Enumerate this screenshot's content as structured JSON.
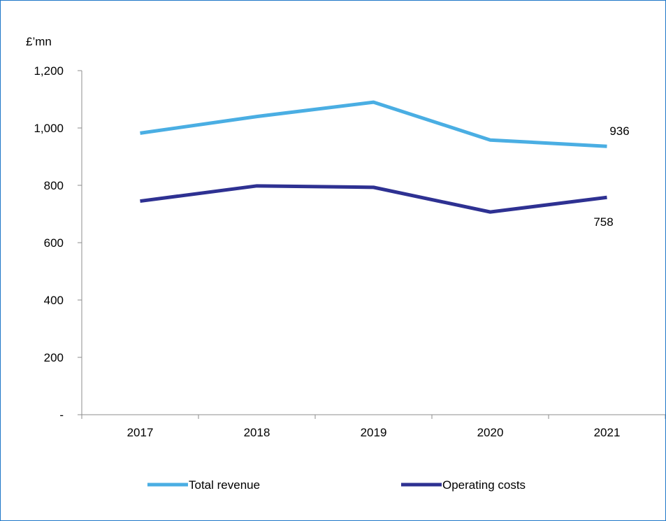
{
  "chart_data": {
    "type": "line",
    "ylabel": "£’mn",
    "categories": [
      "2017",
      "2018",
      "2019",
      "2020",
      "2021"
    ],
    "ylim": [
      0,
      1200
    ],
    "y_ticks": [
      {
        "value": 0,
        "label": "-"
      },
      {
        "value": 200,
        "label": "200"
      },
      {
        "value": 400,
        "label": "400"
      },
      {
        "value": 600,
        "label": "600"
      },
      {
        "value": 800,
        "label": "800"
      },
      {
        "value": 1000,
        "label": "1,000"
      },
      {
        "value": 1200,
        "label": "1,200"
      }
    ],
    "grid": false,
    "legend_position": "bottom",
    "series": [
      {
        "name": "Total revenue",
        "color": "#4aaee3",
        "values": [
          982,
          1040,
          1090,
          958,
          936
        ],
        "end_label": "936"
      },
      {
        "name": "Operating costs",
        "color": "#2e3192",
        "values": [
          745,
          798,
          793,
          707,
          758
        ],
        "end_label": "758"
      }
    ]
  }
}
